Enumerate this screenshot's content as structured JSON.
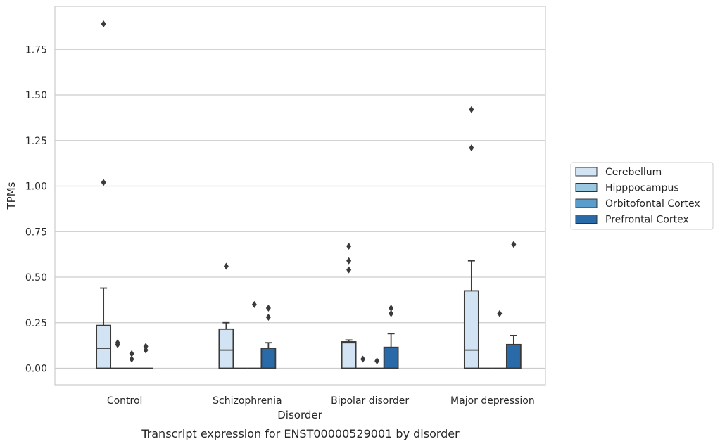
{
  "chart_data": {
    "type": "box",
    "title": "Transcript expression for ENST00000529001 by disorder",
    "xlabel": "Disorder",
    "ylabel": "TPMs",
    "ylim": [
      -0.09,
      1.99
    ],
    "yticks": [
      "0.00",
      "0.25",
      "0.50",
      "0.75",
      "1.00",
      "1.25",
      "1.50",
      "1.75"
    ],
    "grid": true,
    "legend_position": "right",
    "categories": [
      "Control",
      "Schizophrenia",
      "Bipolar disorder",
      "Major depression"
    ],
    "series": [
      {
        "name": "Cerebellum",
        "color": "#d2e3f3",
        "boxes": [
          {
            "q1": 0.0,
            "median": 0.11,
            "q3": 0.235,
            "whisker_low": 0.0,
            "whisker_high": 0.44,
            "outliers": [
              1.02,
              1.89
            ]
          },
          {
            "q1": 0.0,
            "median": 0.1,
            "q3": 0.215,
            "whisker_low": 0.0,
            "whisker_high": 0.25,
            "outliers": [
              0.56
            ]
          },
          {
            "q1": 0.0,
            "median": 0.14,
            "q3": 0.145,
            "whisker_low": 0.0,
            "whisker_high": 0.155,
            "outliers": [
              0.54,
              0.59,
              0.67
            ]
          },
          {
            "q1": 0.0,
            "median": 0.1,
            "q3": 0.425,
            "whisker_low": 0.0,
            "whisker_high": 0.59,
            "outliers": [
              1.21,
              1.42
            ]
          }
        ]
      },
      {
        "name": "Hipppocampus",
        "color": "#9ac8e0",
        "boxes": [
          {
            "q1": 0.0,
            "median": 0.0,
            "q3": 0.0,
            "whisker_low": 0.0,
            "whisker_high": 0.0,
            "outliers": [
              0.13,
              0.14
            ]
          },
          {
            "q1": 0.0,
            "median": 0.0,
            "q3": 0.0,
            "whisker_low": 0.0,
            "whisker_high": 0.0,
            "outliers": []
          },
          {
            "q1": 0.0,
            "median": 0.0,
            "q3": 0.0,
            "whisker_low": 0.0,
            "whisker_high": 0.0,
            "outliers": [
              0.05
            ]
          },
          {
            "q1": 0.0,
            "median": 0.0,
            "q3": 0.0,
            "whisker_low": 0.0,
            "whisker_high": 0.0,
            "outliers": []
          }
        ]
      },
      {
        "name": "Orbitofontal Cortex",
        "color": "#5a9dcc",
        "boxes": [
          {
            "q1": 0.0,
            "median": 0.0,
            "q3": 0.0,
            "whisker_low": 0.0,
            "whisker_high": 0.0,
            "outliers": [
              0.05,
              0.08
            ]
          },
          {
            "q1": 0.0,
            "median": 0.0,
            "q3": 0.0,
            "whisker_low": 0.0,
            "whisker_high": 0.0,
            "outliers": [
              0.35
            ]
          },
          {
            "q1": 0.0,
            "median": 0.0,
            "q3": 0.0,
            "whisker_low": 0.0,
            "whisker_high": 0.0,
            "outliers": [
              0.04
            ]
          },
          {
            "q1": 0.0,
            "median": 0.0,
            "q3": 0.0,
            "whisker_low": 0.0,
            "whisker_high": 0.0,
            "outliers": [
              0.3
            ]
          }
        ]
      },
      {
        "name": "Prefrontal Cortex",
        "color": "#2a6aa8",
        "boxes": [
          {
            "q1": 0.0,
            "median": 0.0,
            "q3": 0.0,
            "whisker_low": 0.0,
            "whisker_high": 0.0,
            "outliers": [
              0.1,
              0.12
            ]
          },
          {
            "q1": 0.0,
            "median": 0.0,
            "q3": 0.11,
            "whisker_low": 0.0,
            "whisker_high": 0.14,
            "outliers": [
              0.28,
              0.33
            ]
          },
          {
            "q1": 0.0,
            "median": 0.0,
            "q3": 0.115,
            "whisker_low": 0.0,
            "whisker_high": 0.19,
            "outliers": [
              0.3,
              0.33
            ]
          },
          {
            "q1": 0.0,
            "median": 0.0,
            "q3": 0.13,
            "whisker_low": 0.0,
            "whisker_high": 0.18,
            "outliers": [
              0.68
            ]
          }
        ]
      }
    ]
  }
}
